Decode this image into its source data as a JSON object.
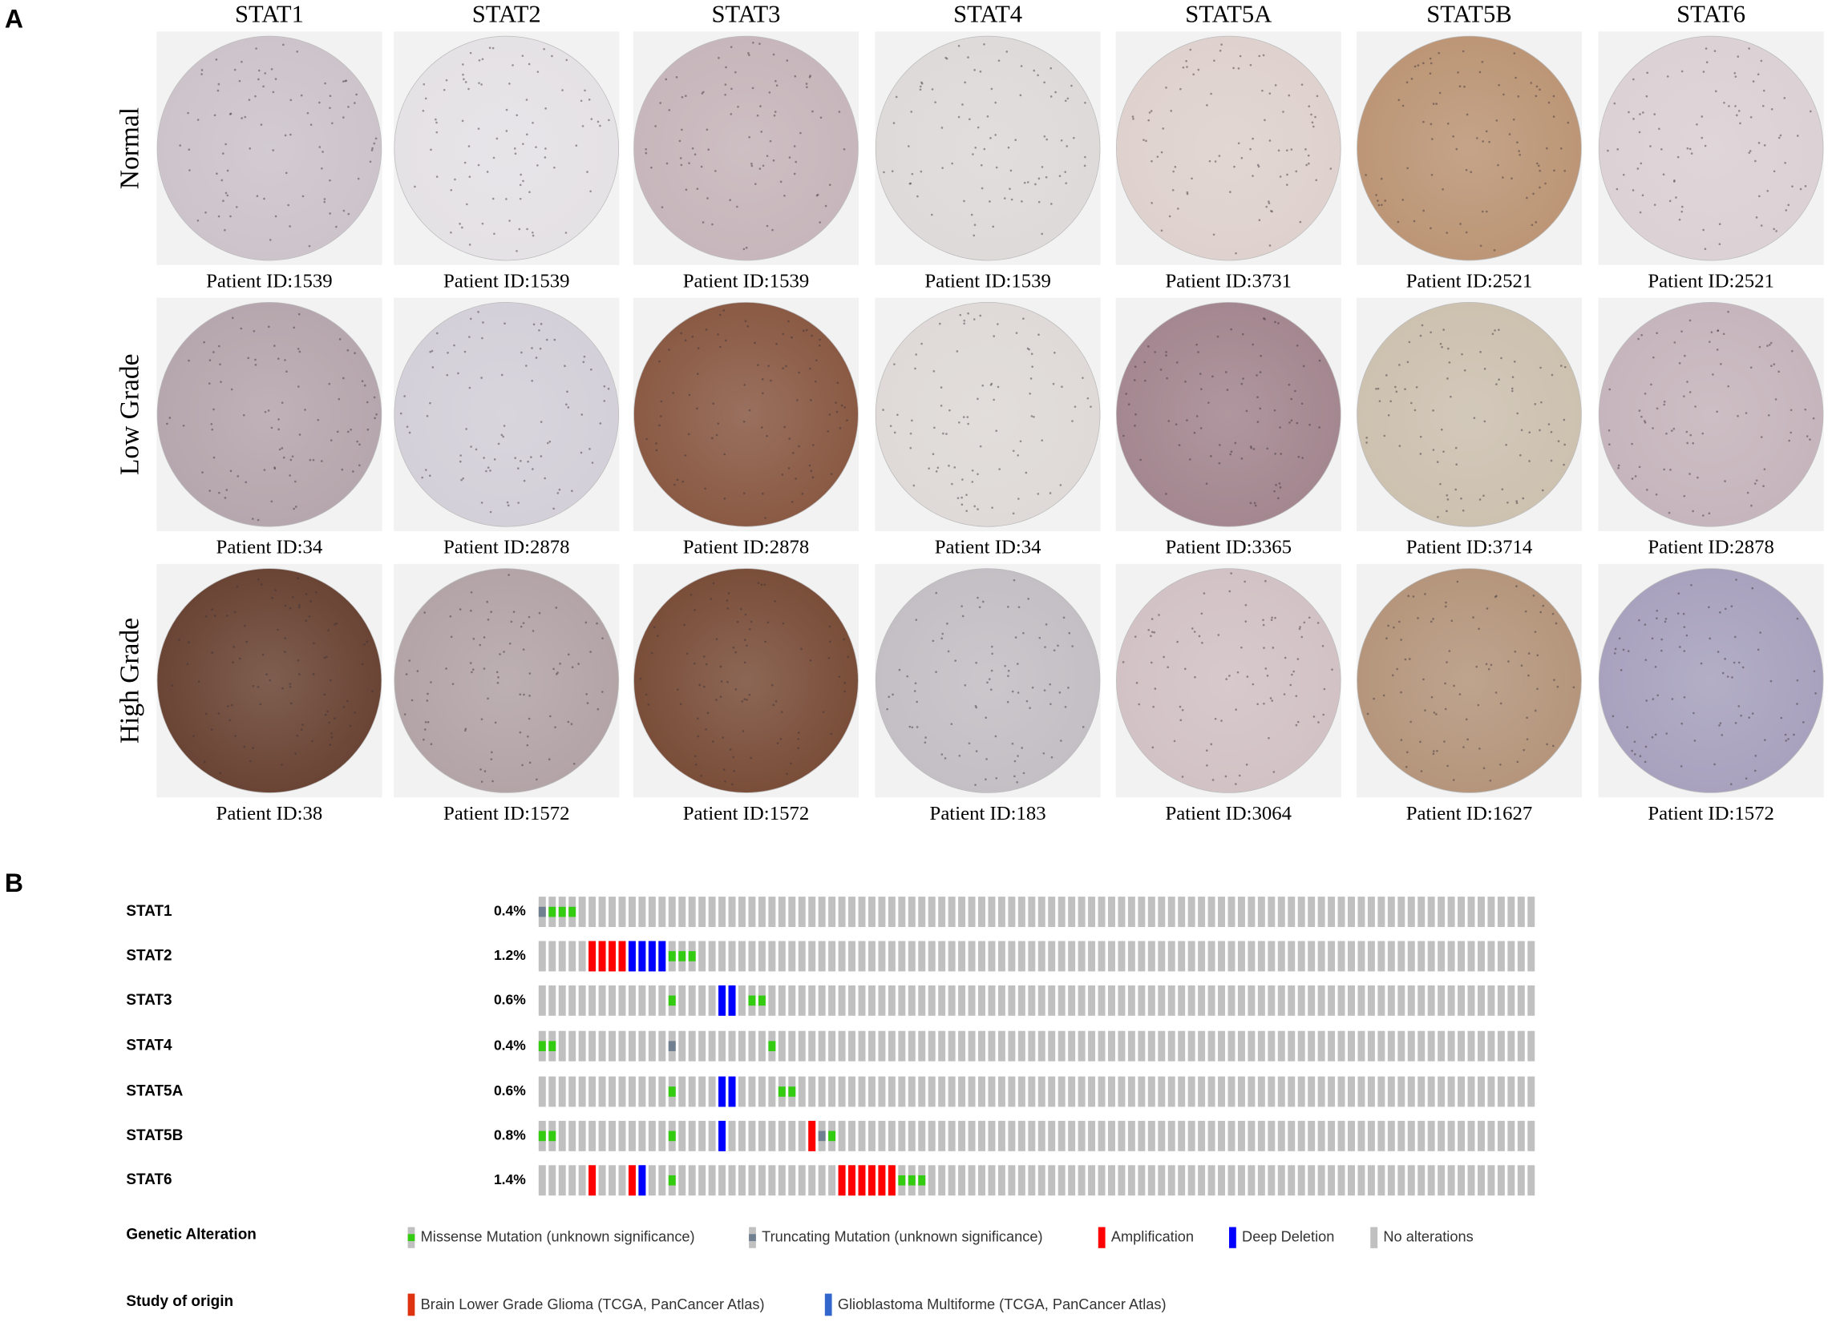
{
  "panel_a": {
    "label": "A",
    "columns": [
      "STAT1",
      "STAT2",
      "STAT3",
      "STAT4",
      "STAT5A",
      "STAT5B",
      "STAT6"
    ],
    "rows": [
      {
        "label": "Normal",
        "patients": [
          "Patient ID:1539",
          "Patient ID:1539",
          "Patient ID:1539",
          "Patient ID:1539",
          "Patient ID:3731",
          "Patient ID:2521",
          "Patient ID:2521"
        ]
      },
      {
        "label": "Low Grade",
        "patients": [
          "Patient ID:34",
          "Patient ID:2878",
          "Patient ID:2878",
          "Patient ID:34",
          "Patient ID:3365",
          "Patient ID:3714",
          "Patient ID:2878"
        ]
      },
      {
        "label": "High Grade",
        "patients": [
          "Patient ID:38",
          "Patient ID:1572",
          "Patient ID:1572",
          "Patient ID:183",
          "Patient ID:3064",
          "Patient ID:1627",
          "Patient ID:1572"
        ]
      }
    ]
  },
  "panel_b": {
    "label": "B",
    "samples": 100,
    "genes": [
      {
        "name": "STAT1",
        "percent": "0.4%",
        "alterations": [
          {
            "sample": 0,
            "type": 1
          },
          {
            "sample": 1,
            "type": 0
          },
          {
            "sample": 2,
            "type": 0
          },
          {
            "sample": 3,
            "type": 0
          }
        ]
      },
      {
        "name": "STAT2",
        "percent": "1.2%",
        "alterations": [
          {
            "sample": 5,
            "type": 2
          },
          {
            "sample": 6,
            "type": 2
          },
          {
            "sample": 7,
            "type": 2
          },
          {
            "sample": 8,
            "type": 2
          },
          {
            "sample": 9,
            "type": 3
          },
          {
            "sample": 10,
            "type": 3
          },
          {
            "sample": 11,
            "type": 3
          },
          {
            "sample": 12,
            "type": 3
          },
          {
            "sample": 13,
            "type": 0
          },
          {
            "sample": 14,
            "type": 0
          },
          {
            "sample": 15,
            "type": 0
          }
        ]
      },
      {
        "name": "STAT3",
        "percent": "0.6%",
        "alterations": [
          {
            "sample": 13,
            "type": 0
          },
          {
            "sample": 18,
            "type": 3
          },
          {
            "sample": 19,
            "type": 3
          },
          {
            "sample": 21,
            "type": 0
          },
          {
            "sample": 22,
            "type": 0
          }
        ]
      },
      {
        "name": "STAT4",
        "percent": "0.4%",
        "alterations": [
          {
            "sample": 0,
            "type": 0
          },
          {
            "sample": 1,
            "type": 0
          },
          {
            "sample": 13,
            "type": 1
          },
          {
            "sample": 23,
            "type": 0
          }
        ]
      },
      {
        "name": "STAT5A",
        "percent": "0.6%",
        "alterations": [
          {
            "sample": 13,
            "type": 0
          },
          {
            "sample": 18,
            "type": 3
          },
          {
            "sample": 19,
            "type": 3
          },
          {
            "sample": 24,
            "type": 0
          },
          {
            "sample": 25,
            "type": 0
          }
        ]
      },
      {
        "name": "STAT5B",
        "percent": "0.8%",
        "alterations": [
          {
            "sample": 0,
            "type": 0
          },
          {
            "sample": 1,
            "type": 0
          },
          {
            "sample": 13,
            "type": 0
          },
          {
            "sample": 18,
            "type": 3
          },
          {
            "sample": 27,
            "type": 2
          },
          {
            "sample": 28,
            "type": 1
          },
          {
            "sample": 29,
            "type": 0
          }
        ]
      },
      {
        "name": "STAT6",
        "percent": "1.4%",
        "alterations": [
          {
            "sample": 5,
            "type": 2
          },
          {
            "sample": 9,
            "type": 2
          },
          {
            "sample": 10,
            "type": 3
          },
          {
            "sample": 13,
            "type": 0
          },
          {
            "sample": 30,
            "type": 2
          },
          {
            "sample": 31,
            "type": 2
          },
          {
            "sample": 32,
            "type": 2
          },
          {
            "sample": 33,
            "type": 2
          },
          {
            "sample": 34,
            "type": 2
          },
          {
            "sample": 35,
            "type": 2
          },
          {
            "sample": 36,
            "type": 0
          },
          {
            "sample": 37,
            "type": 0
          },
          {
            "sample": 38,
            "type": 0
          }
        ]
      }
    ],
    "legend": {
      "title": "Genetic Alteration",
      "items": [
        {
          "label": "Missense Mutation (unknown significance)",
          "color": "#33cc11"
        },
        {
          "label": "Truncating Mutation (unknown significance)",
          "color": "#708090"
        },
        {
          "label": "Amplification",
          "color": "#ff0000"
        },
        {
          "label": "Deep Deletion",
          "color": "#0000ff"
        },
        {
          "label": "No alterations",
          "color": "#c0c0c0"
        }
      ]
    },
    "study": {
      "title": "Study of origin",
      "items": [
        {
          "label": "Brain Lower Grade Glioma (TCGA, PanCancer Atlas)",
          "color": "#dd3311"
        },
        {
          "label": "Glioblastoma Multiforme (TCGA, PanCancer Atlas)",
          "color": "#3366cc"
        }
      ]
    }
  }
}
